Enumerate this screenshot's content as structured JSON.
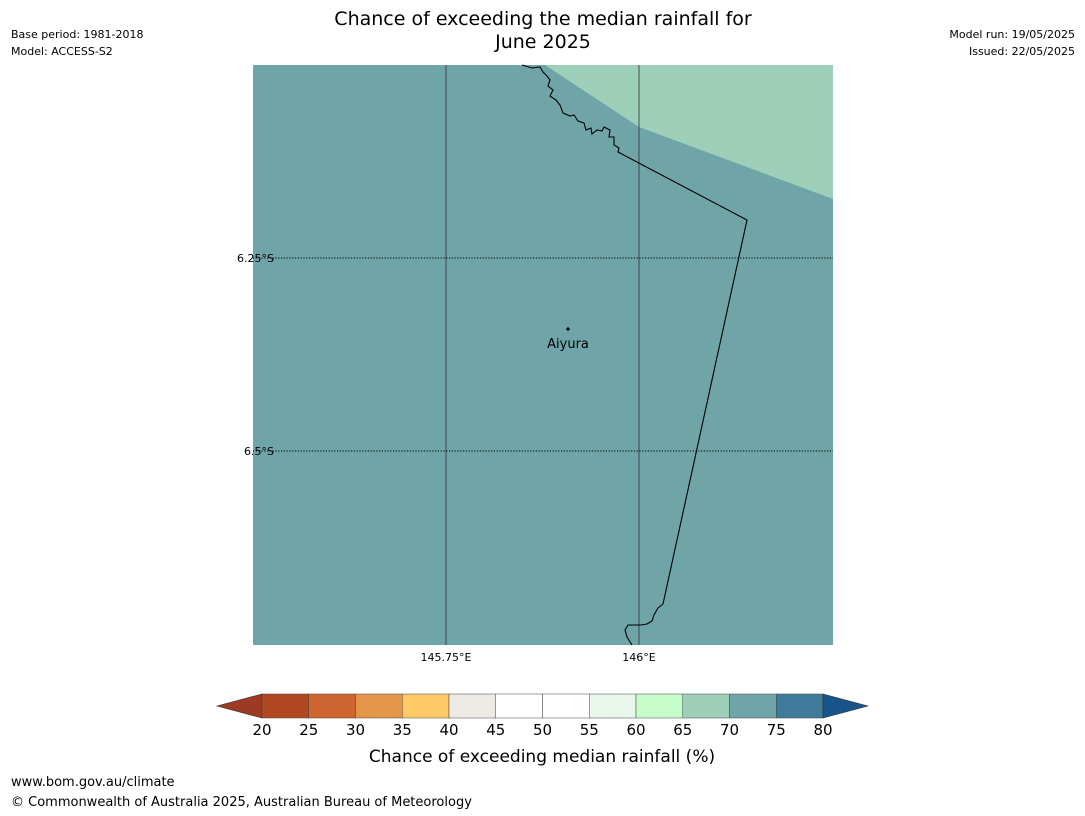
{
  "header": {
    "title_line1": "Chance of exceeding the median rainfall for",
    "title_line2": "June 2025",
    "base_period": "Base period: 1981-2018",
    "model": "Model: ACCESS-S2",
    "model_run": "Model run: 19/05/2025",
    "issued": "Issued: 22/05/2025"
  },
  "map": {
    "lat_labels": [
      "6.25°S",
      "6.5°S"
    ],
    "lon_labels": [
      "145.75°E",
      "146°E"
    ],
    "place": {
      "name": "Aiyura"
    },
    "fill_category": "70-75",
    "fill_color": "#6fa4a8",
    "upper_band_category": "65-70",
    "upper_band_color": "#9ecfb9"
  },
  "colorbar": {
    "label": "Chance of exceeding median rainfall (%)",
    "ticks": [
      "20",
      "25",
      "30",
      "35",
      "40",
      "45",
      "50",
      "55",
      "60",
      "65",
      "70",
      "75",
      "80"
    ],
    "low_extend_color": "#9c3a22",
    "high_extend_color": "#18538a",
    "bin_colors": [
      "#b1481f",
      "#cf6530",
      "#e3954a",
      "#fec966",
      "#eeeae6",
      "#ffffff",
      "#ffffff",
      "#e8f7e9",
      "#c6fdcb",
      "#9ecfb9",
      "#6fa4a8",
      "#3f7a9b"
    ]
  },
  "footer": {
    "url": "www.bom.gov.au/climate",
    "copyright": "© Commonwealth of Australia 2025, Australian Bureau of Meteorology"
  }
}
